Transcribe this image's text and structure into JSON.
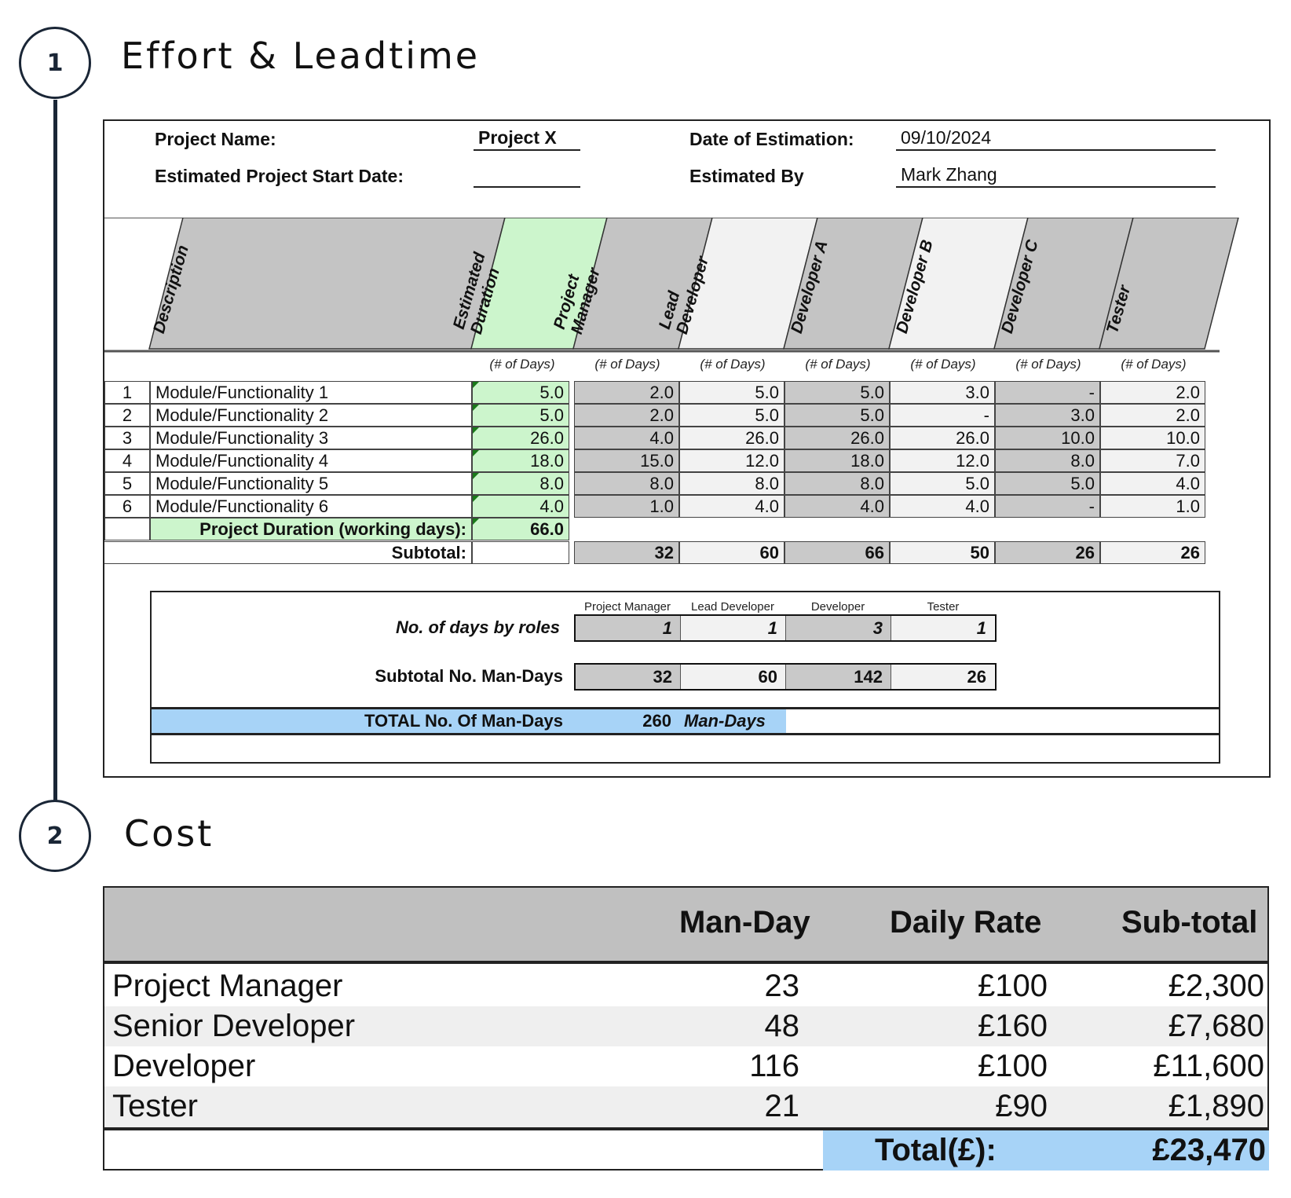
{
  "steps": [
    {
      "number": "1",
      "title": "Effort & Leadtime"
    },
    {
      "number": "2",
      "title": "Cost"
    }
  ],
  "effort": {
    "project_name_label": "Project Name:",
    "project_name": "Project X",
    "start_date_label": "Estimated Project Start Date:",
    "start_date": "",
    "date_label": "Date of Estimation:",
    "date": "09/10/2024",
    "estimated_by_label": "Estimated By",
    "estimated_by": "Mark Zhang",
    "columns": [
      "Description",
      "Estimated\nDuration",
      "Project\nManager",
      "Lead\nDeveloper",
      "Developer A",
      "Developer B",
      "Developer C",
      "Tester"
    ],
    "units": "(# of Days)",
    "rows": [
      {
        "no": "1",
        "desc": "Module/Functionality 1",
        "duration": "5.0",
        "values": [
          "2.0",
          "5.0",
          "5.0",
          "3.0",
          "-",
          "2.0"
        ]
      },
      {
        "no": "2",
        "desc": "Module/Functionality 2",
        "duration": "5.0",
        "values": [
          "2.0",
          "5.0",
          "5.0",
          "-",
          "3.0",
          "2.0"
        ]
      },
      {
        "no": "3",
        "desc": "Module/Functionality 3",
        "duration": "26.0",
        "values": [
          "4.0",
          "26.0",
          "26.0",
          "26.0",
          "10.0",
          "10.0"
        ]
      },
      {
        "no": "4",
        "desc": "Module/Functionality 4",
        "duration": "18.0",
        "values": [
          "15.0",
          "12.0",
          "18.0",
          "12.0",
          "8.0",
          "7.0"
        ]
      },
      {
        "no": "5",
        "desc": "Module/Functionality 5",
        "duration": "8.0",
        "values": [
          "8.0",
          "8.0",
          "8.0",
          "5.0",
          "5.0",
          "4.0"
        ]
      },
      {
        "no": "6",
        "desc": "Module/Functionality 6",
        "duration": "4.0",
        "values": [
          "1.0",
          "4.0",
          "4.0",
          "4.0",
          "-",
          "1.0"
        ]
      }
    ],
    "project_duration_label": "Project Duration (working days):",
    "project_duration": "66.0",
    "subtotal_label": "Subtotal:",
    "subtotals": [
      "32",
      "60",
      "66",
      "50",
      "26",
      "26"
    ],
    "roles_header": [
      "Project Manager",
      "Lead Developer",
      "Developer",
      "Tester"
    ],
    "days_by_roles_label": "No. of days by roles",
    "days_by_roles": [
      "1",
      "1",
      "3",
      "1"
    ],
    "subtotal_man_days_label": "Subtotal No. Man-Days",
    "subtotal_man_days": [
      "32",
      "60",
      "142",
      "26"
    ],
    "total_label": "TOTAL No. Of Man-Days",
    "total_value": "260",
    "total_unit": "Man-Days"
  },
  "cost": {
    "headers": [
      "",
      "Man-Day",
      "Daily Rate",
      "Sub-total"
    ],
    "rows": [
      {
        "role": "Project Manager",
        "man_day": "23",
        "rate": "£100",
        "subtotal": "£2,300"
      },
      {
        "role": "Senior Developer",
        "man_day": "48",
        "rate": "£160",
        "subtotal": "£7,680"
      },
      {
        "role": "Developer",
        "man_day": "116",
        "rate": "£100",
        "subtotal": "£11,600"
      },
      {
        "role": "Tester",
        "man_day": "21",
        "rate": "£90",
        "subtotal": "£1,890"
      }
    ],
    "total_label": "Total(£):",
    "total_value": "£23,470"
  },
  "colors": {
    "green": "#ccf5cc",
    "blue": "#a7d3f7",
    "grey": "#c9c9c9",
    "light": "#f2f2f2"
  }
}
